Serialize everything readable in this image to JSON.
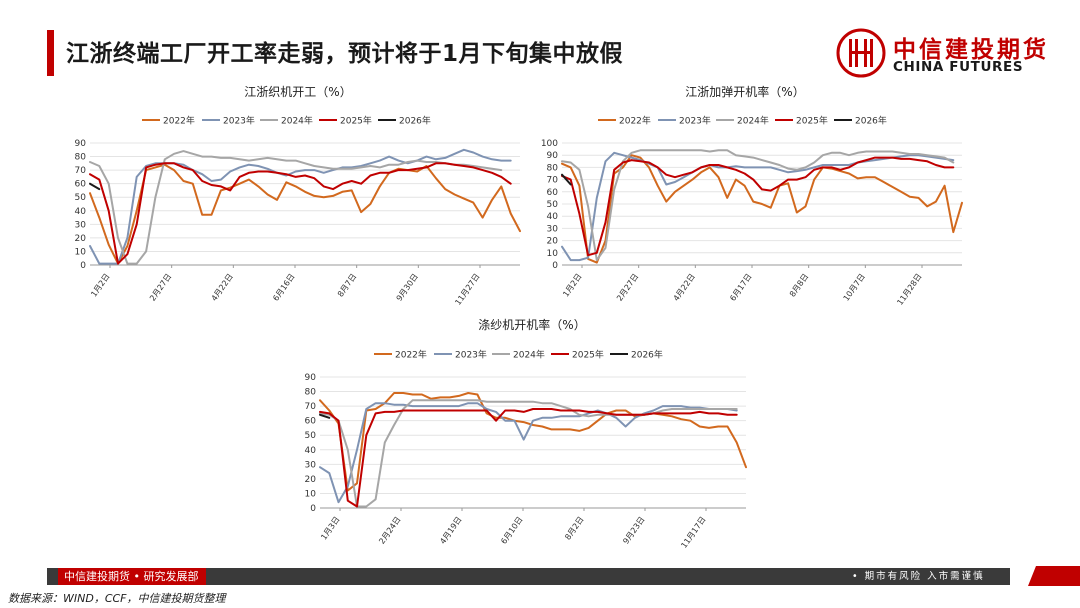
{
  "page": {
    "title": "江浙终端工厂开工率走弱，预计将于1月下旬集中放假",
    "logo_cn": "中信建投期货",
    "logo_en": "CHINA FUTURES",
    "footer_left": "中信建投期货 • 研究发展部",
    "footer_right": "• 期市有风险  入市需谨慎",
    "source": "数据来源：WIND，CCF，中信建投期货整理",
    "colors": {
      "brand_red": "#c00000",
      "footer_gray": "#3a3a3a"
    }
  },
  "chart_data": [
    {
      "type": "line",
      "title": "江浙织机开工（%）",
      "ylim": [
        0,
        90
      ],
      "yticks": [
        0,
        10,
        20,
        30,
        40,
        50,
        60,
        70,
        80,
        90
      ],
      "xticklabels": [
        "1月2日",
        "2月27日",
        "4月22日",
        "6月16日",
        "8月7日",
        "9月30日",
        "11月27日"
      ],
      "legend": "top",
      "series": [
        {
          "name": "2022年",
          "color": "#d2691e",
          "values": [
            53,
            35,
            15,
            1,
            14,
            40,
            70,
            72,
            74,
            70,
            62,
            60,
            37,
            37,
            55,
            57,
            60,
            63,
            58,
            52,
            48,
            61,
            58,
            54,
            51,
            50,
            51,
            54,
            55,
            39,
            45,
            58,
            68,
            71,
            70,
            69,
            73,
            64,
            56,
            52,
            49,
            46,
            35,
            48,
            58,
            38,
            25
          ]
        },
        {
          "name": "2023年",
          "color": "#7f93b3",
          "values": [
            14,
            1,
            1,
            1,
            20,
            65,
            73,
            75,
            75,
            75,
            74,
            70,
            67,
            62,
            63,
            69,
            72,
            74,
            73,
            71,
            68,
            66,
            69,
            70,
            70,
            68,
            70,
            72,
            72,
            73,
            75,
            77,
            80,
            77,
            75,
            77,
            80,
            78,
            79,
            82,
            85,
            83,
            80,
            78,
            77,
            77,
            null
          ]
        },
        {
          "name": "2024年",
          "color": "#a6a6a6",
          "values": [
            76,
            73,
            60,
            20,
            1,
            1,
            10,
            50,
            78,
            82,
            84,
            82,
            80,
            80,
            79,
            79,
            78,
            77,
            78,
            79,
            78,
            77,
            77,
            75,
            73,
            72,
            71,
            71,
            71,
            72,
            73,
            72,
            74,
            74,
            76,
            77,
            76,
            76,
            75,
            74,
            74,
            73,
            72,
            71,
            70,
            null,
            null
          ]
        },
        {
          "name": "2025年",
          "color": "#c00000",
          "values": [
            67,
            63,
            40,
            1,
            8,
            30,
            72,
            74,
            75,
            75,
            72,
            70,
            62,
            59,
            58,
            55,
            65,
            68,
            69,
            69,
            68,
            67,
            65,
            66,
            64,
            58,
            56,
            60,
            62,
            60,
            66,
            68,
            68,
            70,
            70,
            71,
            72,
            75,
            75,
            74,
            73,
            72,
            70,
            68,
            65,
            60,
            null
          ]
        },
        {
          "name": "2026年",
          "color": "#1a1a1a",
          "values": [
            60,
            56,
            null,
            null,
            null,
            null,
            null,
            null,
            null,
            null,
            null,
            null,
            null,
            null,
            null,
            null,
            null,
            null,
            null,
            null,
            null,
            null,
            null,
            null,
            null,
            null,
            null,
            null,
            null,
            null,
            null,
            null,
            null,
            null,
            null,
            null,
            null,
            null,
            null,
            null,
            null,
            null,
            null,
            null,
            null,
            null,
            null
          ]
        }
      ]
    },
    {
      "type": "line",
      "title": "江浙加弹开机率（%）",
      "ylim": [
        0,
        100
      ],
      "yticks": [
        0,
        10,
        20,
        30,
        40,
        50,
        60,
        70,
        80,
        90,
        100
      ],
      "xticklabels": [
        "1月2日",
        "2月27日",
        "4月22日",
        "6月17日",
        "8月8日",
        "10月7日",
        "11月28日"
      ],
      "legend": "top",
      "series": [
        {
          "name": "2022年",
          "color": "#d2691e",
          "values": [
            83,
            80,
            65,
            5,
            2,
            20,
            75,
            80,
            90,
            88,
            80,
            65,
            52,
            60,
            65,
            70,
            76,
            80,
            72,
            55,
            70,
            65,
            52,
            50,
            47,
            65,
            67,
            43,
            48,
            70,
            80,
            79,
            77,
            75,
            71,
            72,
            72,
            68,
            64,
            60,
            56,
            55,
            48,
            52,
            65,
            27,
            51
          ]
        },
        {
          "name": "2023年",
          "color": "#7f93b3",
          "values": [
            15,
            4,
            4,
            6,
            55,
            85,
            92,
            90,
            88,
            86,
            83,
            80,
            66,
            68,
            72,
            76,
            80,
            82,
            80,
            80,
            81,
            80,
            80,
            80,
            80,
            78,
            76,
            77,
            78,
            80,
            82,
            82,
            82,
            82,
            84,
            85,
            86,
            87,
            88,
            89,
            90,
            90,
            89,
            88,
            87,
            86,
            null
          ]
        },
        {
          "name": "2024年",
          "color": "#a6a6a6",
          "values": [
            85,
            84,
            78,
            48,
            4,
            14,
            62,
            85,
            92,
            94,
            94,
            94,
            94,
            94,
            94,
            94,
            94,
            93,
            94,
            94,
            90,
            89,
            88,
            86,
            84,
            82,
            79,
            78,
            80,
            84,
            90,
            92,
            92,
            90,
            92,
            93,
            93,
            93,
            93,
            92,
            91,
            91,
            90,
            89,
            88,
            84,
            null
          ]
        },
        {
          "name": "2025年",
          "color": "#c00000",
          "values": [
            73,
            70,
            42,
            8,
            10,
            35,
            78,
            84,
            86,
            85,
            84,
            80,
            74,
            72,
            74,
            76,
            80,
            82,
            82,
            80,
            78,
            75,
            70,
            62,
            61,
            65,
            70,
            70,
            72,
            78,
            80,
            80,
            78,
            80,
            84,
            86,
            88,
            88,
            88,
            87,
            87,
            86,
            85,
            82,
            80,
            80,
            null
          ]
        },
        {
          "name": "2026年",
          "color": "#1a1a1a",
          "values": [
            74,
            66,
            null,
            null,
            null,
            null,
            null,
            null,
            null,
            null,
            null,
            null,
            null,
            null,
            null,
            null,
            null,
            null,
            null,
            null,
            null,
            null,
            null,
            null,
            null,
            null,
            null,
            null,
            null,
            null,
            null,
            null,
            null,
            null,
            null,
            null,
            null,
            null,
            null,
            null,
            null,
            null,
            null,
            null,
            null,
            null,
            null
          ]
        }
      ]
    },
    {
      "type": "line",
      "title": "涤纱机开机率（%）",
      "ylim": [
        0,
        90
      ],
      "yticks": [
        0,
        10,
        20,
        30,
        40,
        50,
        60,
        70,
        80,
        90
      ],
      "xticklabels": [
        "1月3日",
        "2月24日",
        "4月19日",
        "6月10日",
        "8月2日",
        "9月23日",
        "11月17日"
      ],
      "legend": "top",
      "series": [
        {
          "name": "2022年",
          "color": "#d2691e",
          "values": [
            74,
            67,
            58,
            12,
            17,
            67,
            68,
            72,
            79,
            79,
            78,
            78,
            75,
            76,
            76,
            77,
            79,
            78,
            65,
            62,
            62,
            60,
            59,
            57,
            56,
            54,
            54,
            54,
            53,
            55,
            60,
            65,
            67,
            67,
            63,
            64,
            65,
            64,
            63,
            61,
            60,
            56,
            55,
            56,
            56,
            45,
            28
          ]
        },
        {
          "name": "2023年",
          "color": "#7f93b3",
          "values": [
            28,
            24,
            4,
            15,
            40,
            68,
            72,
            72,
            71,
            71,
            70,
            70,
            70,
            70,
            70,
            70,
            72,
            72,
            68,
            66,
            60,
            60,
            47,
            60,
            62,
            62,
            63,
            63,
            63,
            65,
            67,
            65,
            62,
            56,
            62,
            65,
            67,
            70,
            70,
            70,
            69,
            69,
            68,
            68,
            68,
            67,
            null
          ]
        },
        {
          "name": "2024年",
          "color": "#a6a6a6",
          "values": [
            65,
            64,
            60,
            40,
            1,
            1,
            6,
            45,
            57,
            68,
            74,
            74,
            74,
            74,
            74,
            74,
            74,
            74,
            73,
            73,
            73,
            73,
            73,
            73,
            72,
            72,
            70,
            68,
            64,
            63,
            64,
            64,
            64,
            64,
            64,
            64,
            65,
            67,
            68,
            68,
            68,
            68,
            68,
            68,
            68,
            68,
            null
          ]
        },
        {
          "name": "2025年",
          "color": "#c00000",
          "values": [
            66,
            65,
            60,
            5,
            1,
            50,
            65,
            66,
            66,
            67,
            67,
            67,
            67,
            67,
            67,
            67,
            67,
            67,
            67,
            60,
            67,
            67,
            66,
            68,
            68,
            68,
            67,
            67,
            67,
            66,
            66,
            65,
            64,
            64,
            64,
            64,
            65,
            65,
            65,
            65,
            65,
            66,
            65,
            65,
            64,
            64,
            null
          ]
        },
        {
          "name": "2026年",
          "color": "#1a1a1a",
          "values": [
            64,
            62,
            null,
            null,
            null,
            null,
            null,
            null,
            null,
            null,
            null,
            null,
            null,
            null,
            null,
            null,
            null,
            null,
            null,
            null,
            null,
            null,
            null,
            null,
            null,
            null,
            null,
            null,
            null,
            null,
            null,
            null,
            null,
            null,
            null,
            null,
            null,
            null,
            null,
            null,
            null,
            null,
            null,
            null,
            null,
            null,
            null
          ]
        }
      ]
    }
  ]
}
